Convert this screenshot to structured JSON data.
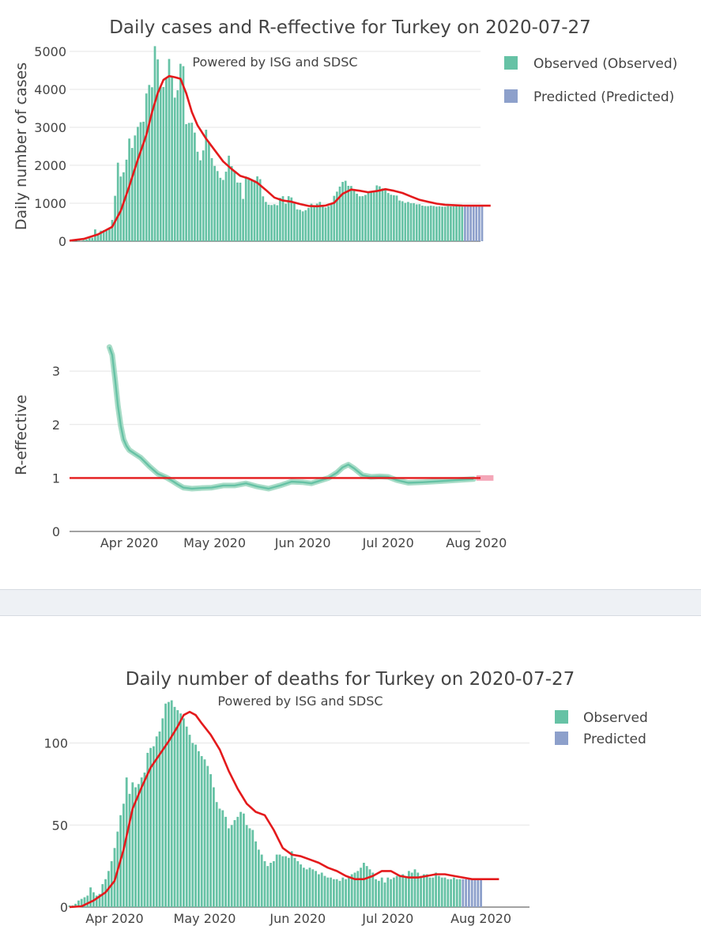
{
  "chart_data": [
    {
      "type": "bar",
      "title": "Daily cases and R-effective for Turkey on 2020-07-27",
      "credit": "Powered by ISG and SDSC",
      "ylabel": "Daily number of cases",
      "ylim": [
        0,
        5000
      ],
      "yticks": [
        0,
        1000,
        2000,
        3000,
        4000,
        5000
      ],
      "colors": {
        "observed": "#66c2a5",
        "predicted": "#8da0cb",
        "smooth": "#e41a1c"
      },
      "legend": [
        {
          "name": "Observed (Observed)",
          "color": "#66c2a5"
        },
        {
          "name": "Predicted (Predicted)",
          "color": "#8da0cb"
        }
      ],
      "start_date": "2020-03-11",
      "observed": [
        1,
        2,
        3,
        18,
        6,
        29,
        47,
        98,
        92,
        311,
        168,
        277,
        289,
        293,
        343,
        561,
        1196,
        2069,
        1704,
        1815,
        2148,
        2704,
        2456,
        2786,
        3013,
        3135,
        3148,
        3892,
        4117,
        4056,
        5138,
        4789,
        4093,
        4062,
        4281,
        4801,
        4353,
        3783,
        3977,
        4674,
        4611,
        3083,
        3116,
        3122,
        2861,
        2357,
        2131,
        2392,
        2936,
        2615,
        2188,
        1983,
        1848,
        1670,
        1614,
        1832,
        2253,
        1977,
        1848,
        1546,
        1542,
        1114,
        1704,
        1639,
        1635,
        1610,
        1708,
        1634,
        1182,
        1035,
        961,
        952,
        972,
        948,
        1141,
        1186,
        987,
        1186,
        1153,
        1034,
        839,
        827,
        786,
        818,
        878,
        987,
        930,
        989,
        1035,
        914,
        889,
        924,
        989,
        1195,
        1306,
        1439,
        1562,
        1592,
        1459,
        1455,
        1333,
        1251,
        1184,
        1187,
        1219,
        1306,
        1320,
        1293,
        1470,
        1446,
        1390,
        1362,
        1269,
        1224,
        1211,
        1202,
        1072,
        1053,
        1011,
        1034,
        1001,
        1002,
        970,
        976,
        937,
        926,
        924,
        936,
        928,
        911,
        919,
        912,
        908,
        923,
        916,
        919,
        952,
        924,
        911
      ],
      "predicted": [
        913,
        913,
        913,
        913,
        913,
        913,
        913
      ],
      "xticks": [
        {
          "label": "Apr 2020",
          "day": 21
        },
        {
          "label": "May 2020",
          "day": 51
        },
        {
          "label": "Jun 2020",
          "day": 82
        },
        {
          "label": "Jul 2020",
          "day": 112
        },
        {
          "label": "Aug 2020",
          "day": 143
        }
      ],
      "smooth": [
        [
          0,
          15
        ],
        [
          5,
          60
        ],
        [
          10,
          180
        ],
        [
          15,
          380
        ],
        [
          18,
          800
        ],
        [
          21,
          1450
        ],
        [
          24,
          2150
        ],
        [
          27,
          2800
        ],
        [
          29,
          3400
        ],
        [
          31,
          3900
        ],
        [
          33,
          4250
        ],
        [
          35,
          4350
        ],
        [
          37,
          4320
        ],
        [
          39,
          4280
        ],
        [
          41,
          3900
        ],
        [
          43,
          3400
        ],
        [
          45,
          3050
        ],
        [
          48,
          2700
        ],
        [
          51,
          2400
        ],
        [
          54,
          2100
        ],
        [
          57,
          1900
        ],
        [
          60,
          1720
        ],
        [
          63,
          1650
        ],
        [
          66,
          1540
        ],
        [
          69,
          1350
        ],
        [
          72,
          1150
        ],
        [
          75,
          1070
        ],
        [
          78,
          1040
        ],
        [
          81,
          980
        ],
        [
          84,
          930
        ],
        [
          87,
          920
        ],
        [
          90,
          940
        ],
        [
          93,
          1010
        ],
        [
          96,
          1250
        ],
        [
          99,
          1360
        ],
        [
          102,
          1330
        ],
        [
          105,
          1290
        ],
        [
          108,
          1320
        ],
        [
          111,
          1370
        ],
        [
          114,
          1330
        ],
        [
          117,
          1270
        ],
        [
          120,
          1180
        ],
        [
          123,
          1090
        ],
        [
          126,
          1040
        ],
        [
          129,
          990
        ],
        [
          132,
          960
        ],
        [
          135,
          950
        ],
        [
          138,
          940
        ],
        [
          141,
          935
        ],
        [
          148,
          935
        ]
      ]
    },
    {
      "type": "line",
      "ylabel": "R-effective",
      "ylim": [
        0,
        3.6
      ],
      "yticks": [
        0,
        1,
        2,
        3
      ],
      "reference_line": 1,
      "colors": {
        "line": "#66c2a5",
        "ci": "#a8dcc7",
        "reference": "#e41a1c"
      },
      "x": [
        14,
        15,
        16,
        17,
        18,
        19,
        20,
        21,
        23,
        25,
        28,
        31,
        34,
        36,
        38,
        40,
        43,
        46,
        50,
        54,
        58,
        62,
        66,
        70,
        74,
        78,
        82,
        85,
        88,
        91,
        94,
        96,
        98,
        100,
        103,
        106,
        109,
        112,
        115,
        119,
        124,
        130,
        136,
        142
      ],
      "y": [
        3.45,
        3.3,
        2.85,
        2.35,
        1.98,
        1.72,
        1.6,
        1.52,
        1.45,
        1.38,
        1.22,
        1.08,
        1.01,
        0.95,
        0.88,
        0.82,
        0.8,
        0.81,
        0.82,
        0.86,
        0.86,
        0.9,
        0.84,
        0.8,
        0.86,
        0.93,
        0.92,
        0.9,
        0.95,
        1.0,
        1.1,
        1.2,
        1.25,
        1.18,
        1.05,
        1.02,
        1.03,
        1.02,
        0.96,
        0.91,
        0.92,
        0.94,
        0.96,
        0.98
      ],
      "predicted": {
        "x": [
          143,
          149
        ],
        "y": [
          1.0,
          1.0
        ],
        "color": "#f4a6b8"
      },
      "xticks": [
        {
          "label": "Apr 2020",
          "day": 21
        },
        {
          "label": "May 2020",
          "day": 51
        },
        {
          "label": "Jun 2020",
          "day": 82
        },
        {
          "label": "Jul 2020",
          "day": 112
        },
        {
          "label": "Aug 2020",
          "day": 143
        }
      ]
    },
    {
      "type": "bar",
      "title": "Daily number of deaths for Turkey on 2020-07-27",
      "credit": "Powered by ISG and SDSC",
      "ylim": [
        0,
        128
      ],
      "yticks": [
        0,
        50,
        100
      ],
      "colors": {
        "observed": "#66c2a5",
        "predicted": "#8da0cb",
        "smooth": "#e41a1c"
      },
      "legend": [
        {
          "name": "Observed",
          "color": "#66c2a5"
        },
        {
          "name": "Predicted",
          "color": "#8da0cb"
        }
      ],
      "start_date": "2020-03-17",
      "observed": [
        1,
        1,
        2,
        4,
        5,
        6,
        7,
        12,
        9,
        7,
        8,
        14,
        17,
        22,
        28,
        36,
        46,
        56,
        63,
        79,
        69,
        76,
        73,
        75,
        79,
        82,
        94,
        97,
        98,
        104,
        107,
        115,
        124,
        125,
        126,
        122,
        120,
        118,
        115,
        110,
        105,
        100,
        99,
        95,
        92,
        90,
        86,
        81,
        73,
        64,
        60,
        59,
        55,
        48,
        50,
        53,
        55,
        58,
        57,
        50,
        48,
        47,
        40,
        35,
        32,
        28,
        25,
        27,
        28,
        32,
        32,
        31,
        31,
        30,
        34,
        30,
        28,
        26,
        24,
        23,
        24,
        23,
        22,
        20,
        21,
        19,
        18,
        18,
        17,
        17,
        16,
        18,
        17,
        18,
        20,
        21,
        22,
        24,
        27,
        25,
        23,
        21,
        17,
        16,
        18,
        15,
        18,
        17,
        18,
        19,
        19,
        20,
        18,
        22,
        21,
        23,
        21,
        19,
        20,
        20,
        18,
        18,
        21,
        19,
        18,
        18,
        17,
        17,
        18,
        17,
        17
      ],
      "predicted": [
        17,
        17,
        17,
        17,
        17,
        17,
        17
      ],
      "xticks": [
        {
          "label": "Apr 2020",
          "day": 15
        },
        {
          "label": "May 2020",
          "day": 45
        },
        {
          "label": "Jun 2020",
          "day": 76
        },
        {
          "label": "Jul 2020",
          "day": 106
        },
        {
          "label": "Aug 2020",
          "day": 137
        }
      ],
      "smooth": [
        [
          0,
          0
        ],
        [
          4,
          0.5
        ],
        [
          8,
          4
        ],
        [
          12,
          9
        ],
        [
          15,
          16
        ],
        [
          18,
          35
        ],
        [
          21,
          60
        ],
        [
          24,
          73
        ],
        [
          27,
          85
        ],
        [
          30,
          93
        ],
        [
          33,
          101
        ],
        [
          36,
          110
        ],
        [
          38,
          117
        ],
        [
          40,
          119
        ],
        [
          42,
          117
        ],
        [
          44,
          112
        ],
        [
          47,
          105
        ],
        [
          50,
          96
        ],
        [
          53,
          83
        ],
        [
          56,
          72
        ],
        [
          59,
          63
        ],
        [
          62,
          58
        ],
        [
          65,
          56
        ],
        [
          68,
          47
        ],
        [
          71,
          36
        ],
        [
          74,
          32
        ],
        [
          77,
          31
        ],
        [
          80,
          29
        ],
        [
          83,
          27
        ],
        [
          86,
          24
        ],
        [
          89,
          22
        ],
        [
          92,
          19
        ],
        [
          95,
          17
        ],
        [
          98,
          17
        ],
        [
          101,
          19
        ],
        [
          104,
          22
        ],
        [
          107,
          22
        ],
        [
          110,
          19
        ],
        [
          113,
          18
        ],
        [
          116,
          18
        ],
        [
          119,
          19
        ],
        [
          122,
          20
        ],
        [
          125,
          20
        ],
        [
          128,
          19
        ],
        [
          131,
          18
        ],
        [
          134,
          17
        ],
        [
          143,
          17
        ]
      ]
    }
  ]
}
